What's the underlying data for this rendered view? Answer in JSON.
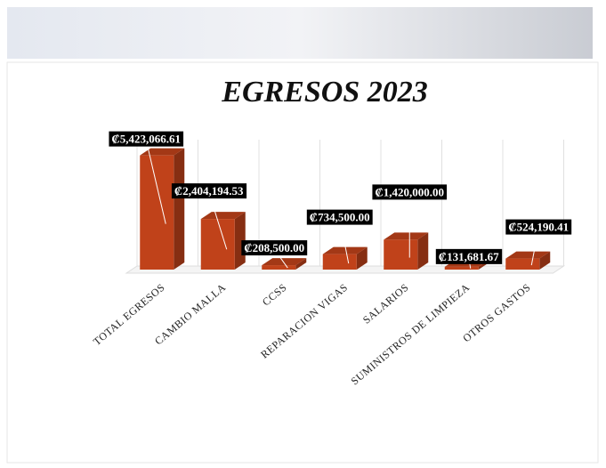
{
  "chart_data": {
    "type": "bar3d",
    "title": "EGRESOS 2023",
    "categories": [
      "TOTAL EGRESOS",
      "CAMBIO MALLA",
      "CCSS",
      "REPARACION VIGAS",
      "SALARIOS",
      "SUMINISTROS DE LIMPIEZA",
      "OTROS GASTOS"
    ],
    "values": [
      5423066.61,
      2404194.53,
      208500.0,
      734500.0,
      1420000.0,
      131681.67,
      524190.41
    ],
    "value_labels": [
      "₡5,423,066.61",
      "₡2,404,194.53",
      "₡208,500.00",
      "₡734,500.00",
      "₡1,420,000.00",
      "₡131,681.67",
      "₡524,190.41"
    ],
    "color": "#c0421a",
    "ylim": [
      0,
      6000000
    ],
    "grid": true
  }
}
